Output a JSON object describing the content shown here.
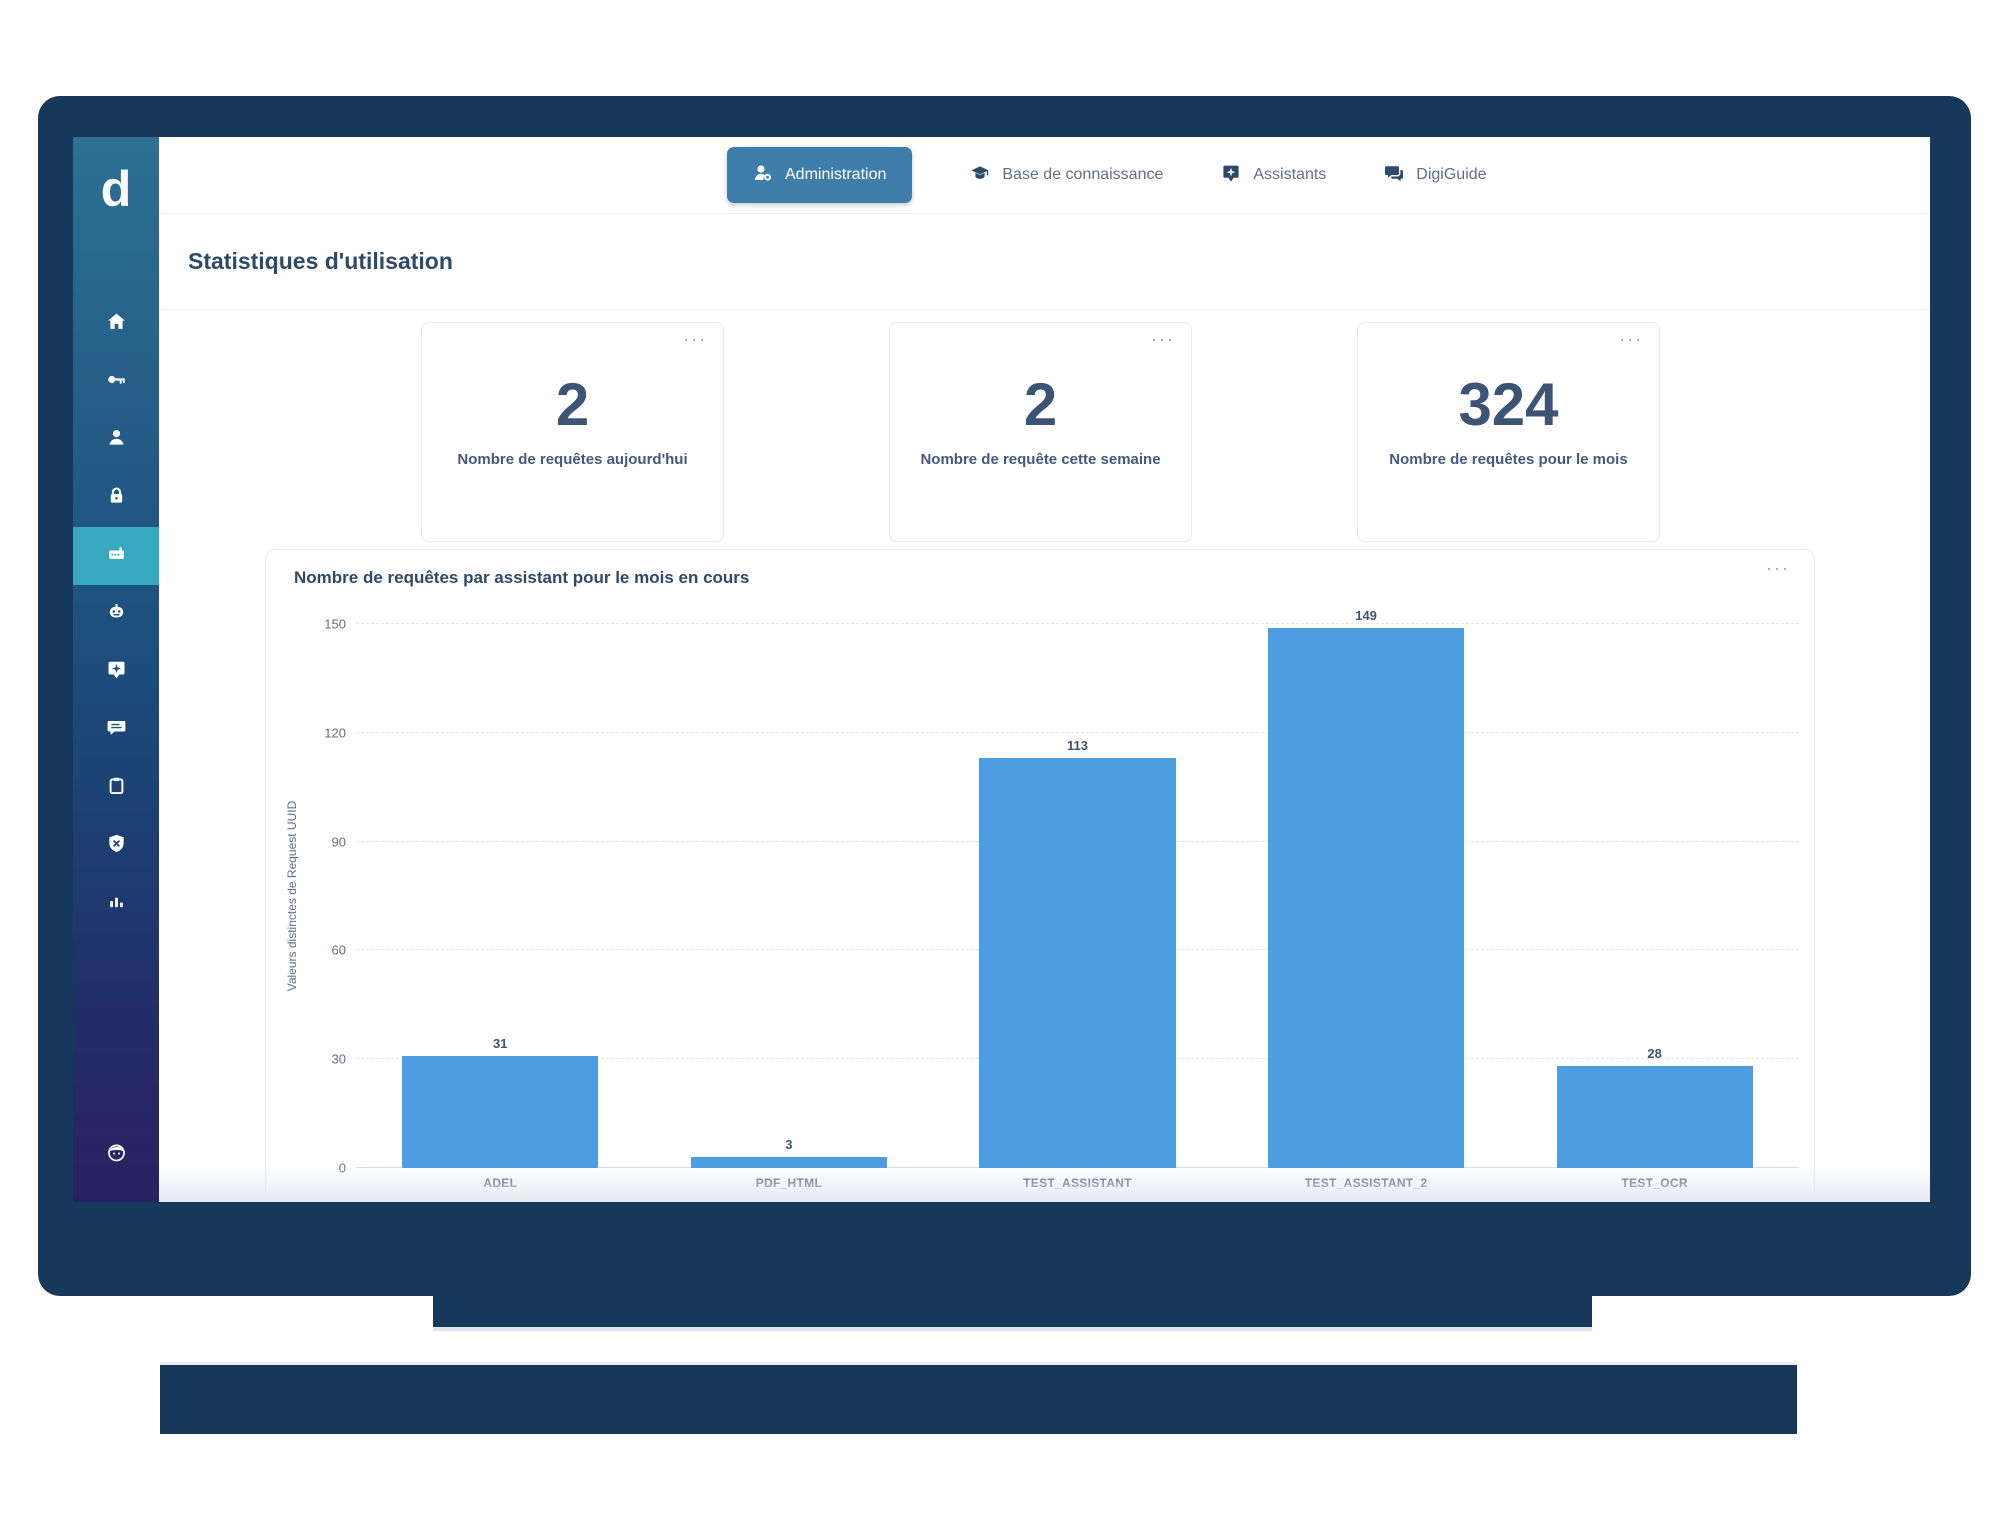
{
  "ui": {
    "ellipsis": "···",
    "logo_letter": "d"
  },
  "nav": {
    "items": [
      {
        "label": "Administration",
        "active": true,
        "icon": "admin-user-gear-icon"
      },
      {
        "label": "Base de connaissance",
        "active": false,
        "icon": "graduation-cap-icon"
      },
      {
        "label": "Assistants",
        "active": false,
        "icon": "assistant-badge-icon"
      },
      {
        "label": "DigiGuide",
        "active": false,
        "icon": "chat-bubbles-icon"
      }
    ]
  },
  "page_title": "Statistiques d'utilisation",
  "stat_cards": [
    {
      "value": "2",
      "label": "Nombre de requêtes aujourd'hui"
    },
    {
      "value": "2",
      "label": "Nombre de requête cette semaine"
    },
    {
      "value": "324",
      "label": "Nombre de requêtes pour le mois"
    }
  ],
  "chart_card": {
    "title": "Nombre de requêtes par assistant pour le mois en cours"
  },
  "chart_data": {
    "type": "bar",
    "title": "Nombre de requêtes par assistant pour le mois en cours",
    "categories": [
      "ADEL",
      "PDF_HTML",
      "TEST_ASSISTANT",
      "TEST_ASSISTANT_2",
      "TEST_OCR"
    ],
    "values": [
      31,
      3,
      113,
      149,
      28
    ],
    "xlabel": "",
    "ylabel": "Valeurs distinctes de Request UUID",
    "yticks": [
      0,
      30,
      60,
      90,
      120,
      150
    ],
    "ylim": [
      0,
      150
    ],
    "grid": "dashed horizontal",
    "legend": "none",
    "bar_color": "#4C9DE1"
  },
  "sidebar": {
    "active_index": 4,
    "icons": [
      "home-icon",
      "key-icon",
      "user-icon",
      "lock-icon",
      "console-robot-icon",
      "robot-head-icon",
      "assistant-badge-icon",
      "chat-list-icon",
      "clipboard-icon",
      "shield-x-icon",
      "bar-chart-icon",
      "face-icon"
    ]
  },
  "colors": {
    "frame_navy": "#16395B",
    "active_tab_blue": "#3F7DAB",
    "sidebar_active_teal": "#36A9C1",
    "bar_blue": "#4C9DE1",
    "text_primary": "#2E4A6B"
  }
}
